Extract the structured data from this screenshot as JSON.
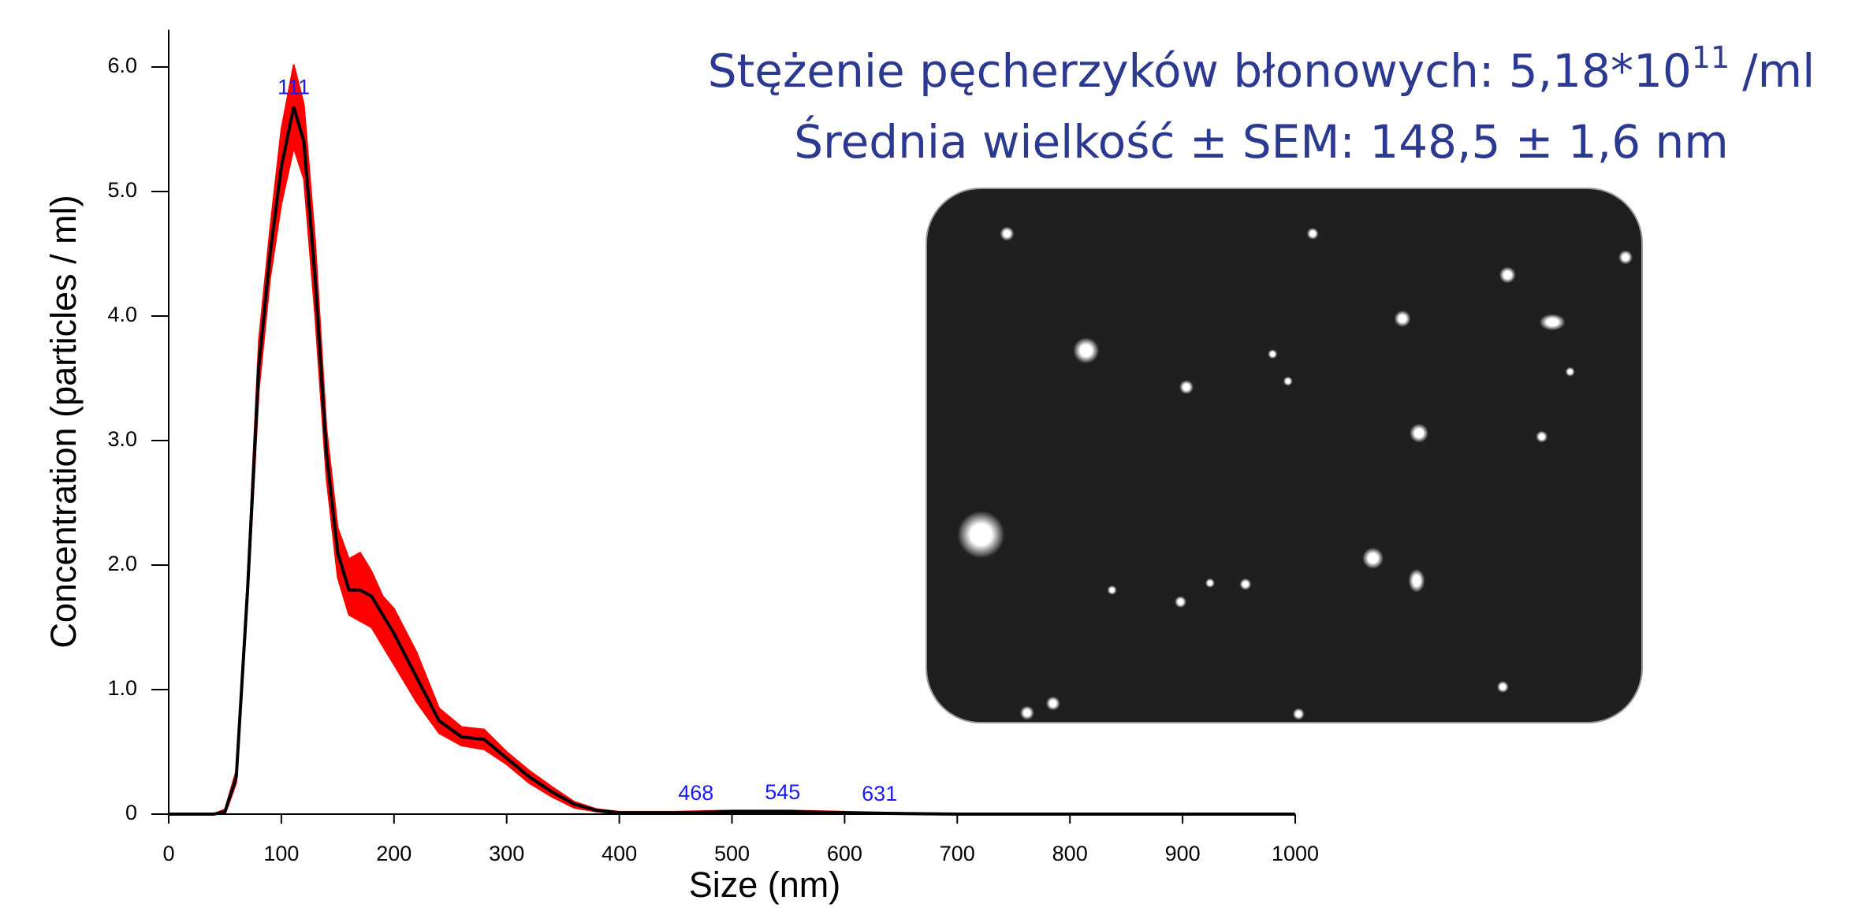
{
  "chart_data": {
    "type": "line",
    "x_label": "Size (nm)",
    "y_label": "Concentration (particles / ml)",
    "x": [
      0,
      40,
      50,
      60,
      70,
      80,
      90,
      100,
      111,
      120,
      130,
      140,
      150,
      160,
      170,
      180,
      190,
      200,
      220,
      240,
      260,
      280,
      300,
      320,
      340,
      360,
      380,
      400,
      450,
      500,
      550,
      600,
      700,
      800,
      900,
      1000
    ],
    "values": [
      0,
      0,
      0.02,
      0.3,
      1.8,
      3.6,
      4.5,
      5.2,
      5.68,
      5.4,
      4.3,
      2.9,
      2.1,
      1.8,
      1.8,
      1.75,
      1.6,
      1.45,
      1.1,
      0.75,
      0.62,
      0.6,
      0.45,
      0.3,
      0.18,
      0.08,
      0.03,
      0.01,
      0.01,
      0.02,
      0.02,
      0.01,
      0,
      0,
      0,
      0
    ],
    "lower": [
      0,
      0,
      0,
      0.25,
      1.7,
      3.4,
      4.3,
      4.9,
      5.35,
      5.1,
      4.0,
      2.7,
      1.9,
      1.6,
      1.55,
      1.5,
      1.35,
      1.2,
      0.9,
      0.65,
      0.55,
      0.52,
      0.4,
      0.25,
      0.14,
      0.05,
      0.02,
      0,
      0,
      0.01,
      0.01,
      0,
      0,
      0,
      0,
      0
    ],
    "upper": [
      0,
      0,
      0.04,
      0.35,
      1.9,
      3.8,
      4.7,
      5.5,
      6.02,
      5.7,
      4.6,
      3.1,
      2.3,
      2.05,
      2.1,
      1.95,
      1.75,
      1.65,
      1.3,
      0.85,
      0.7,
      0.68,
      0.5,
      0.35,
      0.22,
      0.1,
      0.04,
      0.02,
      0.02,
      0.03,
      0.03,
      0.02,
      0,
      0,
      0,
      0
    ],
    "color": "#000000",
    "band_color": "#ff0000",
    "peak_labels": [
      111,
      468,
      545,
      631
    ],
    "xlim": [
      0,
      1000
    ],
    "ylim": [
      0,
      6.3
    ],
    "xticks": [
      0,
      100,
      200,
      300,
      400,
      500,
      600,
      700,
      800,
      900,
      1000
    ],
    "yticks": [
      {
        "value": 0,
        "label": "0"
      },
      {
        "value": 1,
        "label": "1.0"
      },
      {
        "value": 2,
        "label": "2.0"
      },
      {
        "value": 3,
        "label": "3.0"
      },
      {
        "value": 4,
        "label": "4.0"
      },
      {
        "value": 5,
        "label": "5.0"
      },
      {
        "value": 6,
        "label": "6.0"
      }
    ],
    "grid": false,
    "annotations": {
      "concentration_text": "Stężenie pęcherzyków błonowych: 5,18*10",
      "concentration_exponent": "11",
      "concentration_unit": "/ml",
      "mean_size": "Średnia wielkość ± SEM: 148,5 ± 1,6 nm"
    }
  }
}
